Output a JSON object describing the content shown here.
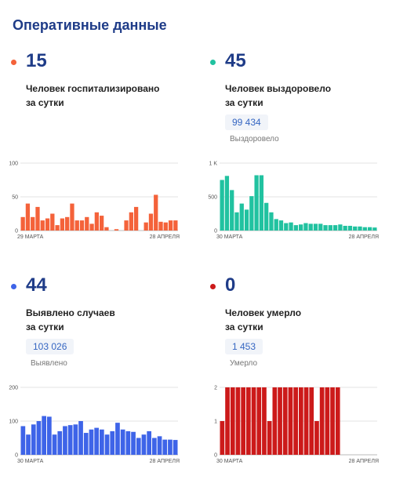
{
  "page": {
    "title": "Оперативные данные"
  },
  "panels": [
    {
      "id": "hospitalized",
      "number": "15",
      "caption": "Человек госпитализировано\nза сутки",
      "color": "#f4623a"
    },
    {
      "id": "recovered",
      "number": "45",
      "caption": "Человек выздоровело\nза сутки",
      "total_value": "99 434",
      "total_label": "Выздоровело",
      "color": "#21c2a0"
    },
    {
      "id": "cases",
      "number": "44",
      "caption": "Выявлено случаев\nза сутки",
      "total_value": "103 026",
      "total_label": "Выявлено",
      "color": "#3e64e8"
    },
    {
      "id": "deaths",
      "number": "0",
      "caption": "Человек умерло\nза сутки",
      "total_value": "1 453",
      "total_label": "Умерло",
      "color": "#cc1a1a"
    }
  ],
  "chart_data": [
    {
      "type": "bar",
      "series": [
        {
          "values": [
            20,
            40,
            20,
            35,
            15,
            18,
            25,
            8,
            18,
            20,
            40,
            15,
            15,
            20,
            10,
            27,
            22,
            5,
            0,
            2,
            0,
            15,
            27,
            35,
            0,
            12,
            25,
            53,
            13,
            12,
            15,
            15
          ]
        }
      ],
      "ylim": [
        0,
        100
      ],
      "yticks": [
        "0",
        "50",
        "100"
      ],
      "ytick_values": [
        0,
        50,
        100
      ],
      "x_start_label": "29 МАРТА",
      "x_end_label": "28 АПРЕЛЯ",
      "grid": true
    },
    {
      "type": "bar",
      "series": [
        {
          "values": [
            750,
            810,
            600,
            270,
            400,
            310,
            510,
            820,
            820,
            410,
            270,
            170,
            150,
            110,
            120,
            80,
            90,
            110,
            100,
            100,
            100,
            80,
            80,
            80,
            90,
            70,
            70,
            60,
            60,
            50,
            50,
            45
          ]
        }
      ],
      "ylim": [
        0,
        1000
      ],
      "yticks": [
        "0",
        "500",
        "1 K"
      ],
      "ytick_values": [
        0,
        500,
        1000
      ],
      "x_start_label": "30 МАРТА",
      "x_end_label": "28 АПРЕЛЯ",
      "grid": true
    },
    {
      "type": "bar",
      "series": [
        {
          "values": [
            85,
            60,
            90,
            100,
            115,
            113,
            60,
            70,
            85,
            88,
            90,
            100,
            65,
            75,
            80,
            75,
            60,
            70,
            95,
            75,
            70,
            68,
            50,
            60,
            70,
            50,
            55,
            45,
            45,
            44
          ]
        }
      ],
      "ylim": [
        0,
        200
      ],
      "yticks": [
        "0",
        "100",
        "200"
      ],
      "ytick_values": [
        0,
        100,
        200
      ],
      "x_start_label": "30 МАРТА",
      "x_end_label": "28 АПРЕЛЯ",
      "grid": true
    },
    {
      "type": "bar",
      "series": [
        {
          "values": [
            1,
            2,
            2,
            2,
            2,
            2,
            2,
            2,
            2,
            1,
            2,
            2,
            2,
            2,
            2,
            2,
            2,
            2,
            1,
            2,
            2,
            2,
            2
          ]
        }
      ],
      "ylim": [
        0,
        2
      ],
      "yticks": [
        "0",
        "1",
        "2"
      ],
      "ytick_values": [
        0,
        1,
        2
      ],
      "x_start_label": "30 МАРТА",
      "x_end_label": "28 АПРЕЛЯ",
      "x_slots": 30,
      "grid": true
    }
  ]
}
